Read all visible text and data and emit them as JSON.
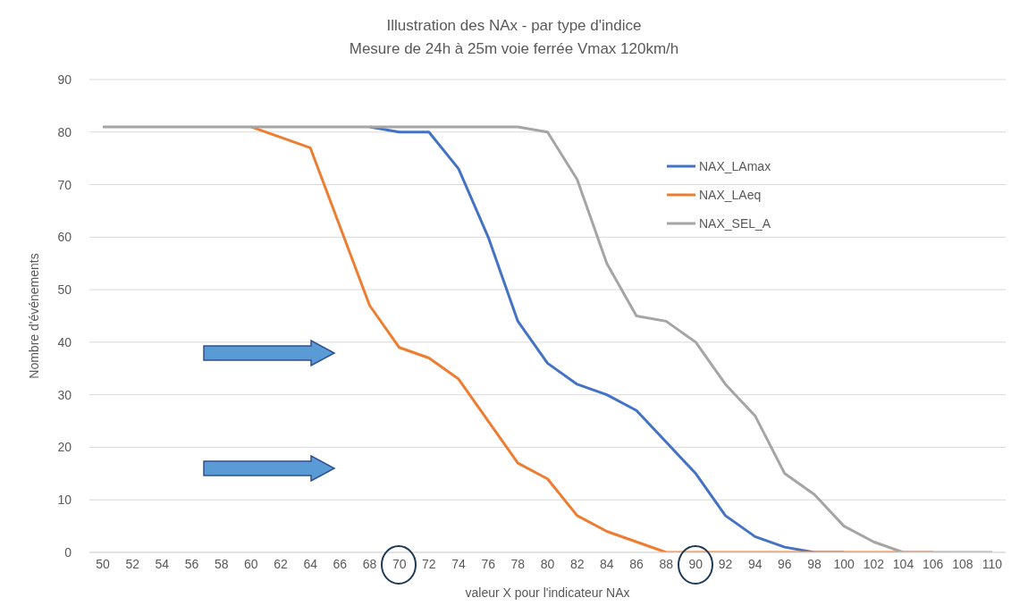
{
  "chart_data": {
    "type": "line",
    "title": "Illustration des NAx - par type d'indice",
    "subtitle": "Mesure de 24h à 25m voie ferrée Vmax 120km/h",
    "xlabel": "valeur X pour l'indicateur NAx",
    "ylabel": "Nombre d'événements",
    "categories": [
      "50",
      "52",
      "54",
      "56",
      "58",
      "60",
      "62",
      "64",
      "66",
      "68",
      "70",
      "72",
      "74",
      "76",
      "78",
      "80",
      "82",
      "84",
      "86",
      "88",
      "90",
      "92",
      "94",
      "96",
      "98",
      "100",
      "102",
      "104",
      "106",
      "108",
      "110"
    ],
    "series": [
      {
        "name": "NAX_LAmax",
        "color": "#4472c4",
        "values": [
          null,
          null,
          null,
          null,
          null,
          null,
          null,
          null,
          null,
          81,
          80,
          80,
          73,
          60,
          44,
          36,
          32,
          30,
          27,
          21,
          15,
          7,
          3,
          1,
          0,
          0,
          null,
          null,
          null,
          null,
          null
        ]
      },
      {
        "name": "NAX_LAeq",
        "color": "#ed7d31",
        "values": [
          null,
          null,
          null,
          null,
          null,
          81,
          79,
          77,
          62,
          47,
          39,
          37,
          33,
          25,
          17,
          14,
          7,
          4,
          2,
          0,
          0,
          0,
          0,
          0,
          0,
          0,
          0,
          0,
          0,
          null,
          null
        ]
      },
      {
        "name": "NAX_SEL_A",
        "color": "#a5a5a5",
        "values": [
          81,
          81,
          81,
          81,
          81,
          81,
          81,
          81,
          81,
          81,
          81,
          81,
          81,
          81,
          81,
          80,
          71,
          55,
          45,
          44,
          40,
          32,
          26,
          15,
          11,
          5,
          2,
          0,
          0,
          0,
          0
        ]
      }
    ],
    "ylim": [
      0,
      90
    ],
    "yticks": [
      0,
      10,
      20,
      30,
      40,
      50,
      60,
      70,
      80,
      90
    ],
    "grid": "y",
    "legend": "top right",
    "marker": "none",
    "line_style": "solid"
  }
}
